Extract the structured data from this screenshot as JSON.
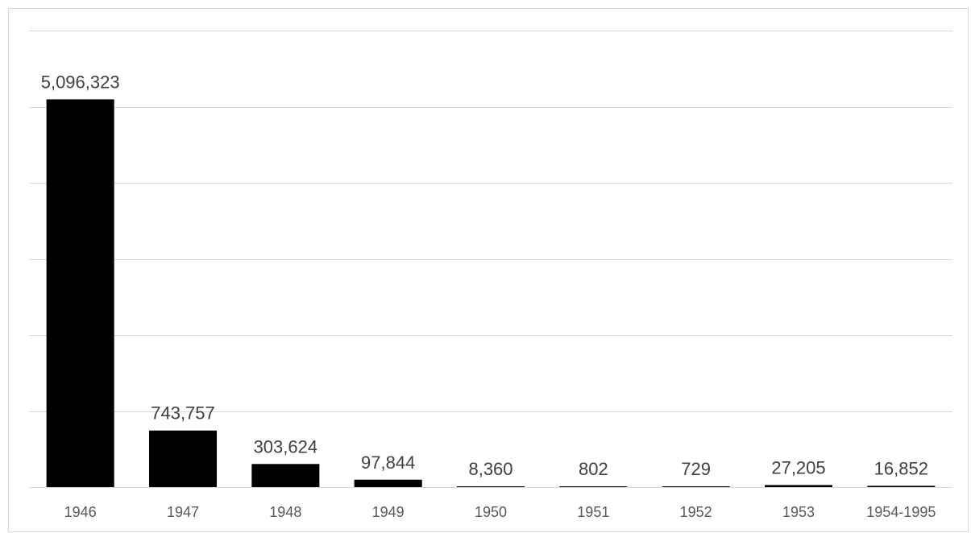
{
  "chart_data": {
    "type": "bar",
    "title": "",
    "xlabel": "",
    "ylabel": "",
    "categories": [
      "1946",
      "1947",
      "1948",
      "1949",
      "1950",
      "1951",
      "1952",
      "1953",
      "1954-1995"
    ],
    "values": [
      5096323,
      743757,
      303624,
      97844,
      8360,
      802,
      729,
      27205,
      16852
    ],
    "value_labels": [
      "5,096,323",
      "743,757",
      "303,624",
      "97,844",
      "8,360",
      "802",
      "729",
      "27,205",
      "16,852"
    ],
    "ylim": [
      0,
      6000000
    ],
    "y_gridlines": [
      0,
      1000000,
      2000000,
      3000000,
      4000000,
      5000000,
      6000000
    ],
    "y_axis_labels_shown": false,
    "grid": true,
    "legend": "none",
    "bar_color": "#000000",
    "gridline_color": "#d9d9d9"
  }
}
